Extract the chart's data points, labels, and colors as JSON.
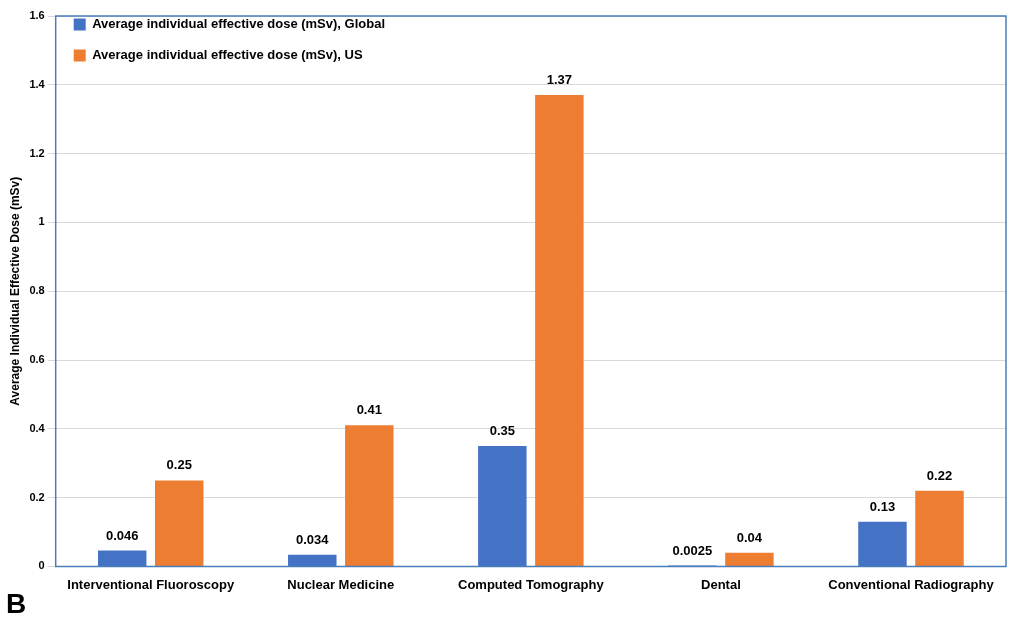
{
  "chart_data": {
    "type": "bar",
    "ylabel": "Average Individual Effective Dose (mSv)",
    "categories": [
      "Interventional Fluoroscopy",
      "Nuclear Medicine",
      "Computed Tomography",
      "Dental",
      "Conventional Radiography"
    ],
    "series": [
      {
        "name": "Average individual effective dose (mSv), Global",
        "color": "#4472c4",
        "values": [
          0.046,
          0.034,
          0.35,
          0.0025,
          0.13
        ]
      },
      {
        "name": "Average individual effective dose (mSv), US",
        "color": "#ed7d31",
        "values": [
          0.25,
          0.41,
          1.37,
          0.04,
          0.22
        ]
      }
    ],
    "ylim": [
      0,
      1.6
    ],
    "yticks": [
      0,
      0.2,
      0.4,
      0.6,
      0.8,
      1,
      1.2,
      1.4,
      1.6
    ],
    "grid": "y",
    "legend": "top left",
    "data_labels": true,
    "annotations": [
      "B"
    ]
  }
}
